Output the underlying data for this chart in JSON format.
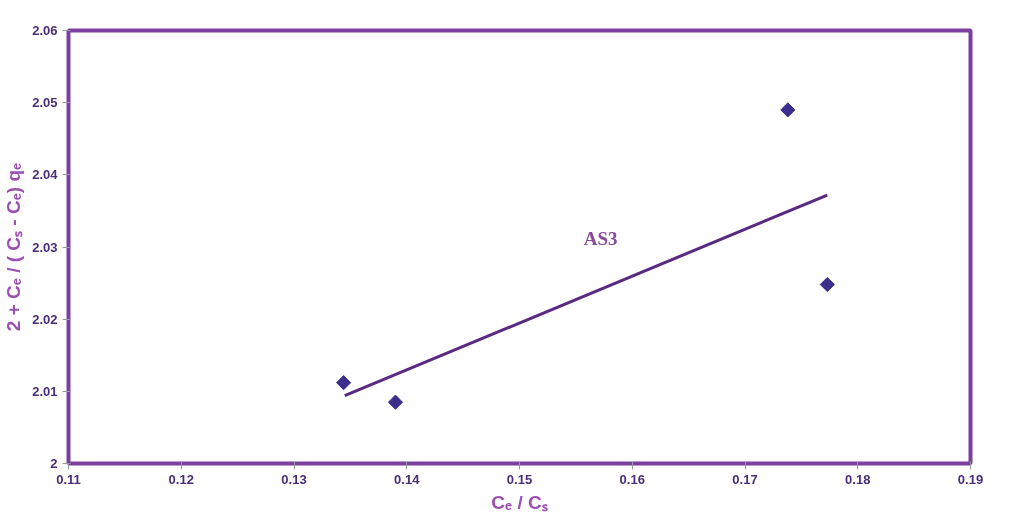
{
  "chart_data": {
    "type": "scatter",
    "xlabel": "Cₑ / Cₛ",
    "ylabel": "2 + Cₑ / ( Cₛ - Cₑ) qₑ",
    "xlim": [
      0.11,
      0.19
    ],
    "xticks": [
      0.11,
      0.12,
      0.13,
      0.14,
      0.15,
      0.16,
      0.17,
      0.18,
      0.19
    ],
    "ylim": [
      2,
      2.06
    ],
    "yticks": [
      2,
      2.01,
      2.02,
      2.03,
      2.04,
      2.05,
      2.06
    ],
    "grid": false,
    "series": [
      {
        "marker": "diamond",
        "color": "#3b2e8c",
        "x": [
          0.1344,
          0.139,
          0.1738,
          0.1773
        ],
        "values": [
          2.0112,
          2.0085,
          2.049,
          2.0248
        ]
      },
      {
        "type": "line",
        "marker": "none",
        "color": "#5a2a80",
        "x": [
          0.1345,
          0.1773
        ],
        "values": [
          2.0094,
          2.0372
        ]
      }
    ],
    "annotations": [
      "AS3"
    ]
  }
}
